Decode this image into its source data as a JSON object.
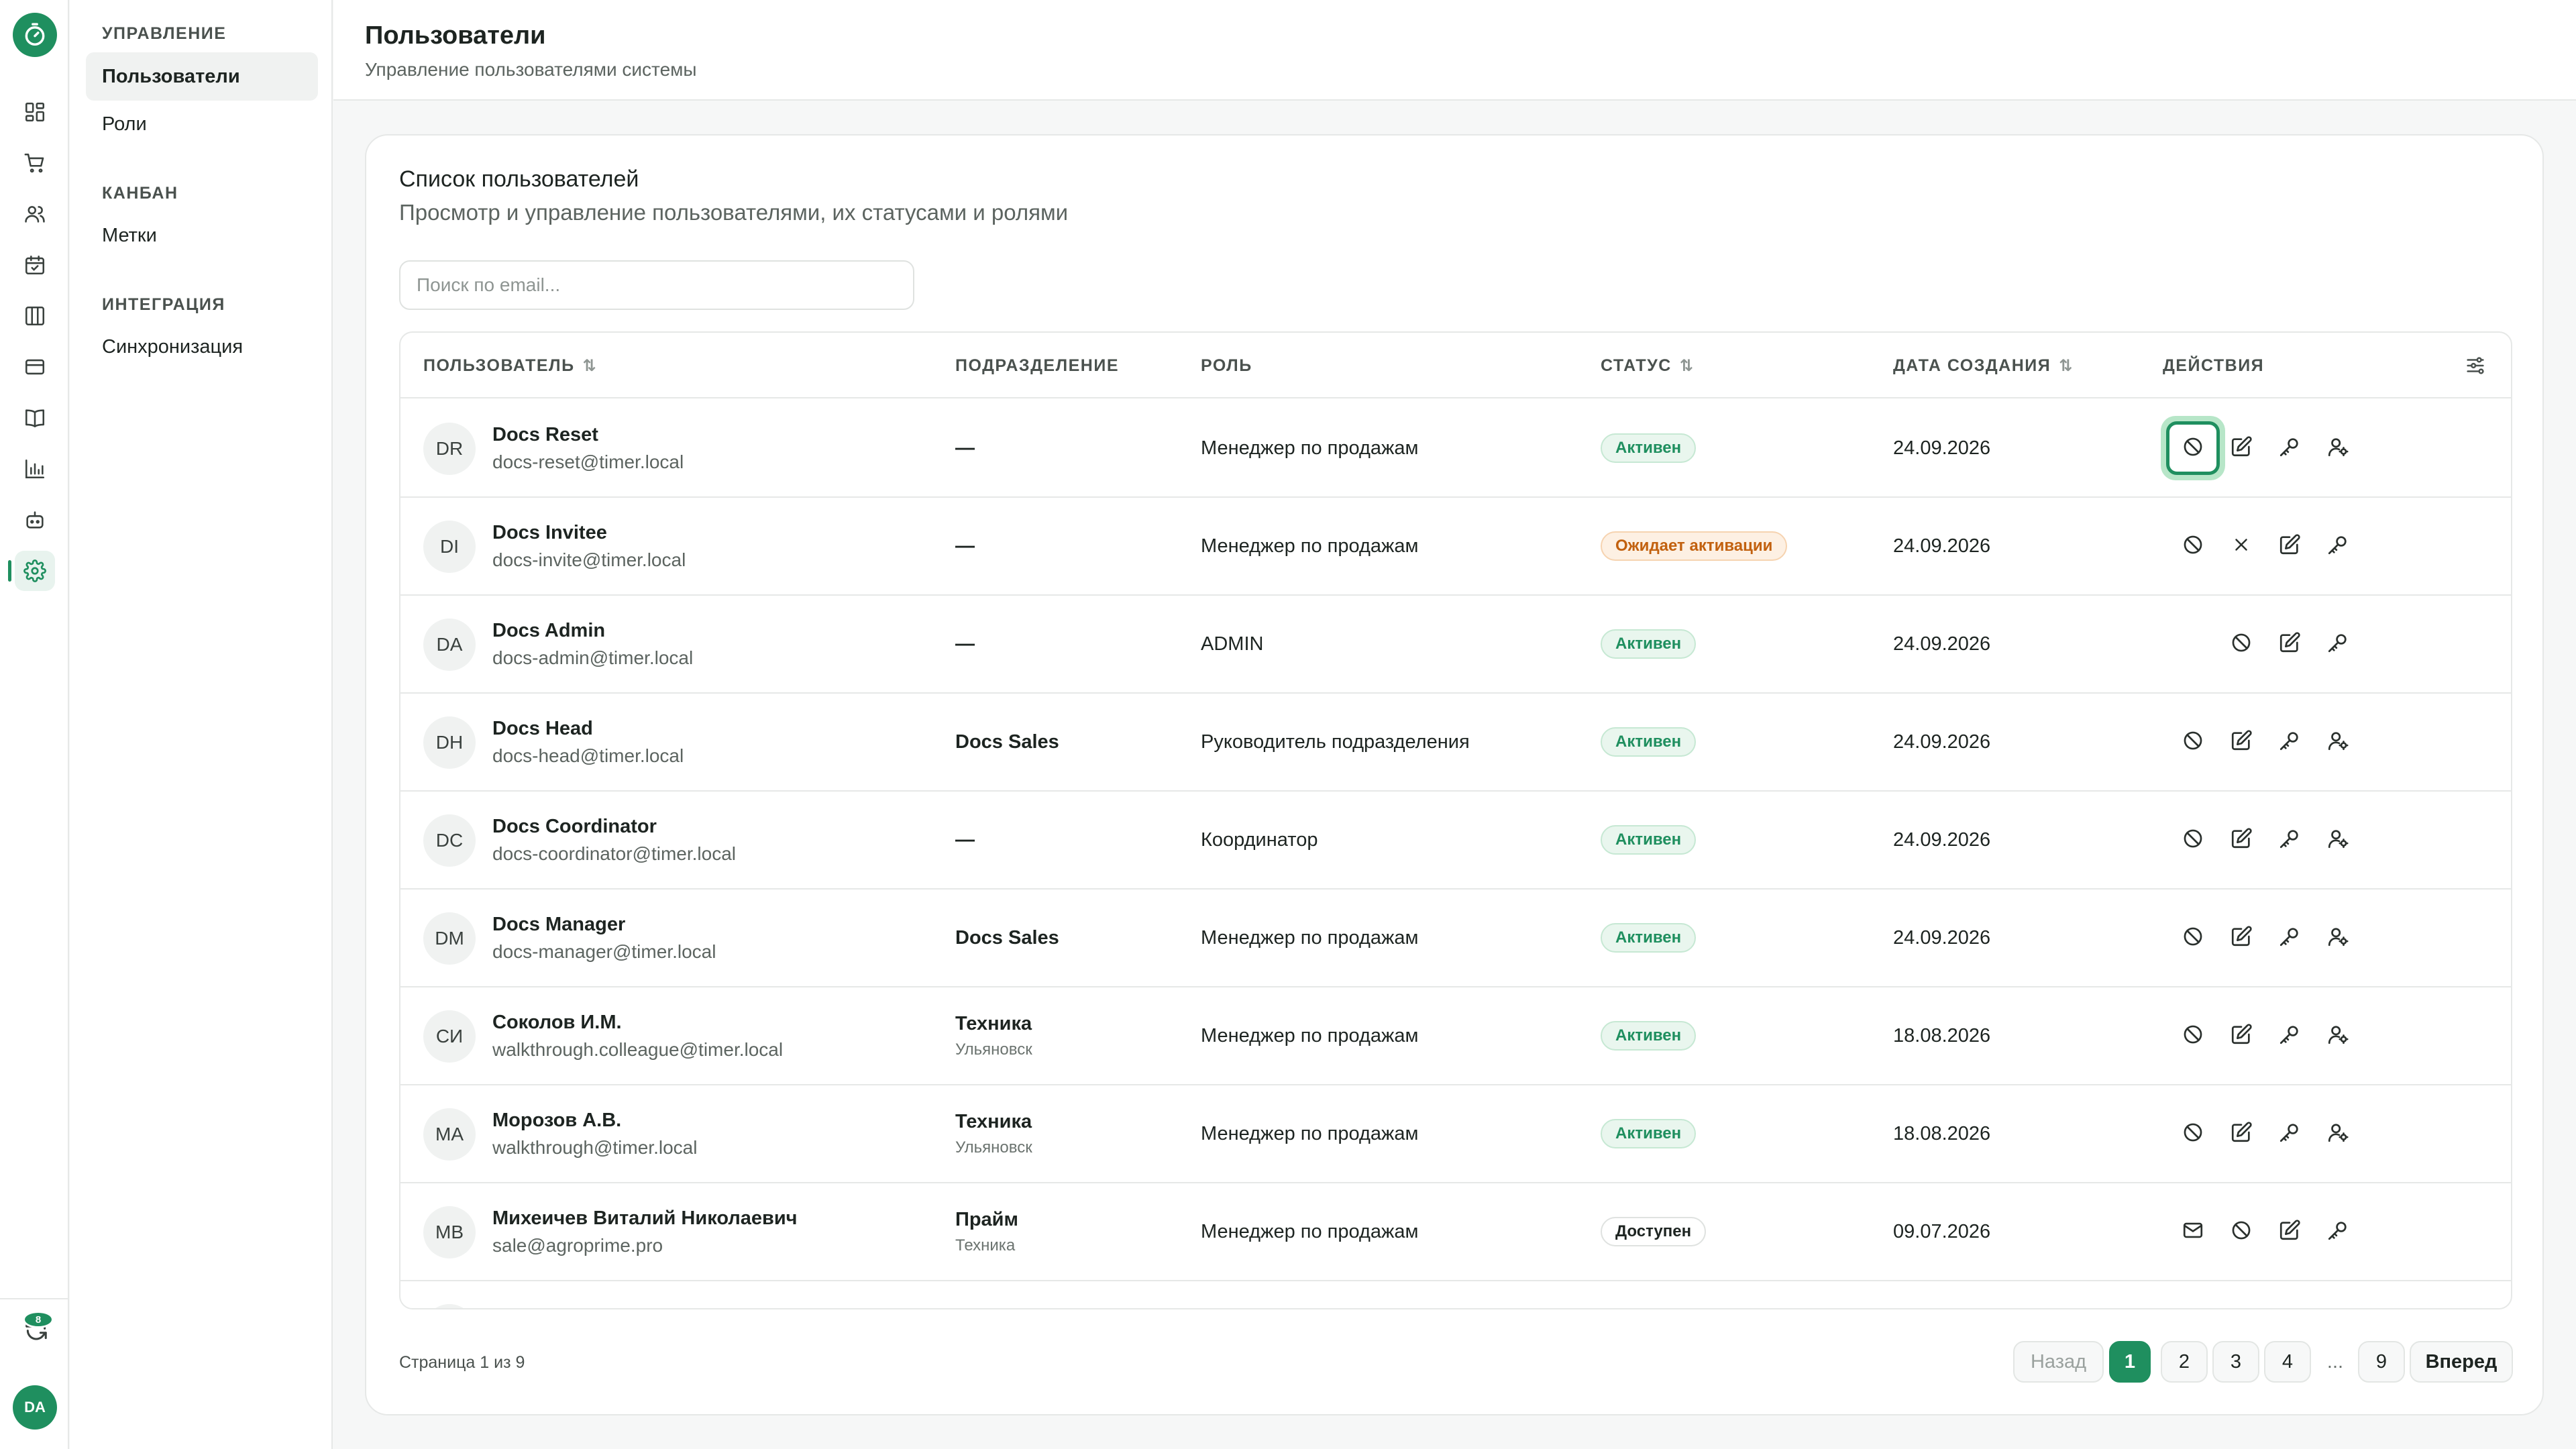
{
  "sidebar": {
    "notifications_count": "8",
    "user_initials": "DA",
    "icons": [
      "dashboard-icon",
      "cart-icon",
      "users-icon",
      "calendar-icon",
      "kanban-icon",
      "card-icon",
      "book-icon",
      "chart-icon",
      "robot-icon",
      "gear-icon"
    ]
  },
  "submenu": {
    "section_management": "УПРАВЛЕНИЕ",
    "item_users": "Пользователи",
    "item_roles": "Роли",
    "section_kanban": "КАНБАН",
    "item_tags": "Метки",
    "section_integration": "ИНТЕГРАЦИЯ",
    "item_sync": "Синхронизация"
  },
  "header": {
    "title": "Пользователи",
    "subtitle": "Управление пользователями системы"
  },
  "card": {
    "title": "Список пользователей",
    "subtitle": "Просмотр и управление пользователями, их статусами и ролями",
    "search_placeholder": "Поиск по email..."
  },
  "table": {
    "columns": {
      "user": "ПОЛЬЗОВАТЕЛЬ",
      "department": "ПОДРАЗДЕЛЕНИЕ",
      "role": "РОЛЬ",
      "status": "СТАТУС",
      "created": "ДАТА СОЗДАНИЯ",
      "actions": "ДЕЙСТВИЯ"
    },
    "sort_glyph": "⇅",
    "rows": [
      {
        "initials": "DR",
        "name": "Docs Reset",
        "email": "docs-reset@timer.local",
        "department": "—",
        "department_sub": "",
        "role": "Менеджер по продажам",
        "status": "Активен",
        "status_color": "green",
        "date": "24.09.2026",
        "actions": [
          "block",
          "edit",
          "key",
          "user-switch"
        ],
        "focused_action": "block"
      },
      {
        "initials": "DI",
        "name": "Docs Invitee",
        "email": "docs-invite@timer.local",
        "department": "—",
        "department_sub": "",
        "role": "Менеджер по продажам",
        "status": "Ожидает активации",
        "status_color": "orange",
        "date": "24.09.2026",
        "actions": [
          "block",
          "close",
          "edit",
          "key"
        ]
      },
      {
        "initials": "DA",
        "name": "Docs Admin",
        "email": "docs-admin@timer.local",
        "department": "—",
        "department_sub": "",
        "role": "ADMIN",
        "status": "Активен",
        "status_color": "green",
        "date": "24.09.2026",
        "actions": [
          "block",
          "edit",
          "key"
        ]
      },
      {
        "initials": "DH",
        "name": "Docs Head",
        "email": "docs-head@timer.local",
        "department": "Docs Sales",
        "department_sub": "",
        "role": "Руководитель подразделения",
        "status": "Активен",
        "status_color": "green",
        "date": "24.09.2026",
        "actions": [
          "block",
          "edit",
          "key",
          "user-switch"
        ]
      },
      {
        "initials": "DC",
        "name": "Docs Coordinator",
        "email": "docs-coordinator@timer.local",
        "department": "—",
        "department_sub": "",
        "role": "Координатор",
        "status": "Активен",
        "status_color": "green",
        "date": "24.09.2026",
        "actions": [
          "block",
          "edit",
          "key",
          "user-switch"
        ]
      },
      {
        "initials": "DM",
        "name": "Docs Manager",
        "email": "docs-manager@timer.local",
        "department": "Docs Sales",
        "department_sub": "",
        "role": "Менеджер по продажам",
        "status": "Активен",
        "status_color": "green",
        "date": "24.09.2026",
        "actions": [
          "block",
          "edit",
          "key",
          "user-switch"
        ]
      },
      {
        "initials": "СИ",
        "name": "Соколов И.М.",
        "email": "walkthrough.colleague@timer.local",
        "department": "Техника",
        "department_sub": "Ульяновск",
        "role": "Менеджер по продажам",
        "status": "Активен",
        "status_color": "green",
        "date": "18.08.2026",
        "actions": [
          "block",
          "edit",
          "key",
          "user-switch"
        ]
      },
      {
        "initials": "МА",
        "name": "Морозов А.В.",
        "email": "walkthrough@timer.local",
        "department": "Техника",
        "department_sub": "Ульяновск",
        "role": "Менеджер по продажам",
        "status": "Активен",
        "status_color": "green",
        "date": "18.08.2026",
        "actions": [
          "block",
          "edit",
          "key",
          "user-switch"
        ]
      },
      {
        "initials": "МВ",
        "name": "Михеичев Виталий Николаевич",
        "email": "sale@agroprime.pro",
        "department": "Прайм",
        "department_sub": "Техника",
        "role": "Менеджер по продажам",
        "status": "Доступен",
        "status_color": "neutral",
        "date": "09.07.2026",
        "actions": [
          "mail",
          "block",
          "edit",
          "key"
        ]
      }
    ]
  },
  "pagination": {
    "info": "Страница 1 из 9",
    "prev": "Назад",
    "pages": [
      "1",
      "2",
      "3",
      "4"
    ],
    "ellipsis": "...",
    "last": "9",
    "next": "Вперед",
    "current": "1"
  },
  "colors": {
    "accent": "#1f8f5f",
    "active_badge_bg": "#e9f6ee",
    "pending_badge_bg": "#fdf0e3"
  }
}
